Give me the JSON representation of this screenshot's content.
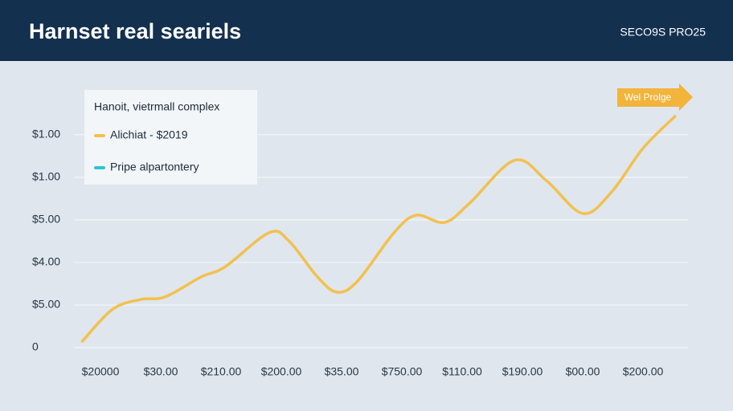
{
  "chart_data": {
    "type": "line",
    "title": "Harnset real seariels",
    "badge": "SECO9S PRO25",
    "legend_title": "Hanoit, vietrmall complex",
    "annotation": "Wel Prolge",
    "x": [
      -0.3,
      0.2,
      0.67,
      1.07,
      1.67,
      2.07,
      2.8,
      3.13,
      3.6,
      3.93,
      4.27,
      4.87,
      5.24,
      5.71,
      6.13,
      6.87,
      7.4,
      8.0,
      8.47,
      9.0,
      9.53
    ],
    "series": [
      {
        "name": "Alichiat - $2019",
        "color": "#f2c14e",
        "values": [
          0.15,
          0.9,
          1.13,
          1.19,
          1.66,
          1.9,
          2.7,
          2.5,
          1.66,
          1.3,
          1.57,
          2.7,
          3.11,
          2.94,
          3.4,
          4.4,
          3.92,
          3.15,
          3.64,
          4.68,
          5.43
        ]
      },
      {
        "name": "Pripe alpartontery",
        "color": "#2ec4d6",
        "values": [
          null,
          null,
          null,
          null,
          null,
          null,
          null,
          null,
          null,
          null,
          null,
          null,
          null,
          null,
          null,
          null,
          null,
          null,
          null,
          null,
          null
        ]
      }
    ],
    "xlim": [
      -0.5,
      9.8
    ],
    "xticks": [
      {
        "value": 0,
        "label": "$20000"
      },
      {
        "value": 1,
        "label": "$30.00"
      },
      {
        "value": 2,
        "label": "$210.00"
      },
      {
        "value": 3,
        "label": "$200.00"
      },
      {
        "value": 4,
        "label": "$35.00"
      },
      {
        "value": 5,
        "label": "$750.00"
      },
      {
        "value": 6,
        "label": "$110.00"
      },
      {
        "value": 7,
        "label": "$190.00"
      },
      {
        "value": 8,
        "label": "$00.00"
      },
      {
        "value": 9,
        "label": "$200.00"
      }
    ],
    "ylim": [
      0,
      5.6
    ],
    "yticks": [
      0,
      {
        "value": 1,
        "label": "$5.00"
      },
      {
        "value": 2,
        "label": "$4.00"
      },
      {
        "value": 3,
        "label": "$5.00"
      },
      {
        "value": 4,
        "label": "$1.00"
      },
      {
        "value": 5,
        "label": "$1.00"
      }
    ],
    "grid": true
  }
}
